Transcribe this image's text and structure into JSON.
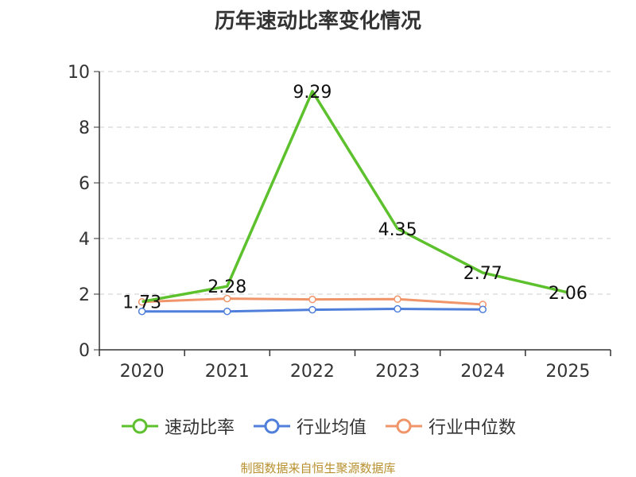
{
  "chart_data": {
    "type": "line",
    "title": "历年速动比率变化情况",
    "categories": [
      "2020",
      "2021",
      "2022",
      "2023",
      "2024",
      "2025"
    ],
    "ylim": [
      0,
      10
    ],
    "yticks": [
      0,
      2,
      4,
      6,
      8,
      10
    ],
    "grid": "horizontal-dashed",
    "legend_position": "bottom",
    "series": [
      {
        "name": "速动比率",
        "color": "#5cc12c",
        "values": [
          1.73,
          2.28,
          9.29,
          4.35,
          2.77,
          2.06
        ],
        "labels": [
          "1.73",
          "2.28",
          "9.29",
          "4.35",
          "2.77",
          "2.06"
        ]
      },
      {
        "name": "行业均值",
        "color": "#4f7fda",
        "values": [
          1.38,
          1.38,
          1.44,
          1.47,
          1.45,
          null
        ]
      },
      {
        "name": "行业中位数",
        "color": "#f0956a",
        "values": [
          1.72,
          1.84,
          1.81,
          1.82,
          1.63,
          null
        ]
      }
    ]
  },
  "footer": {
    "source": "制图数据来自恒生聚源数据库"
  }
}
